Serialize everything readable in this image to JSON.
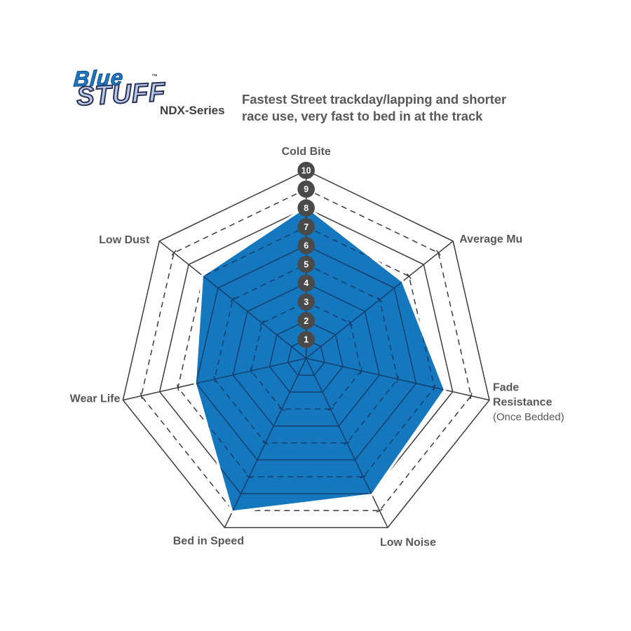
{
  "header": {
    "logo": {
      "line1": "Blue",
      "line2": "STUFF",
      "tm": "™",
      "series": "NDX-Series"
    },
    "description_line1": "Fastest Street trackday/lapping and shorter",
    "description_line2": "race use, very fast to bed in at the track"
  },
  "chart_data": {
    "type": "radar",
    "title": "EBC Bluestuff NDX-Series brake pad performance radar",
    "axes_count": 7,
    "axes": [
      {
        "label": "Cold Bite",
        "value": 8
      },
      {
        "label": "Average Mu",
        "value": 6.5
      },
      {
        "label": "Fade Resistance",
        "sublabel": "(Once Bedded)",
        "value": 7.5
      },
      {
        "label": "Low Noise",
        "value": 8
      },
      {
        "label": "Bed in Speed",
        "value": 9
      },
      {
        "label": "Wear Life",
        "value": 6
      },
      {
        "label": "Low Dust",
        "value": 7
      }
    ],
    "scale": {
      "min": 0,
      "max": 10,
      "tick_labels": [
        "1",
        "2",
        "3",
        "4",
        "5",
        "6",
        "7",
        "8",
        "9",
        "10"
      ],
      "solid_rings": [
        1,
        2,
        4,
        6,
        8,
        10
      ],
      "dashed_rings": [
        3,
        5,
        7,
        9
      ]
    },
    "legend": "none",
    "grid": "heptagonal rings, solid at 1,2,4,6,8,10 and dashed at 3,5,7,9",
    "colors": {
      "fill": "#1577bd",
      "fill_outline": "#ffffff",
      "grid": "#3b3b3b",
      "grid_over_fill": "#14406e",
      "badge": "#4a4a4a",
      "badge_text": "#ffffff",
      "label": "#58585a"
    }
  }
}
